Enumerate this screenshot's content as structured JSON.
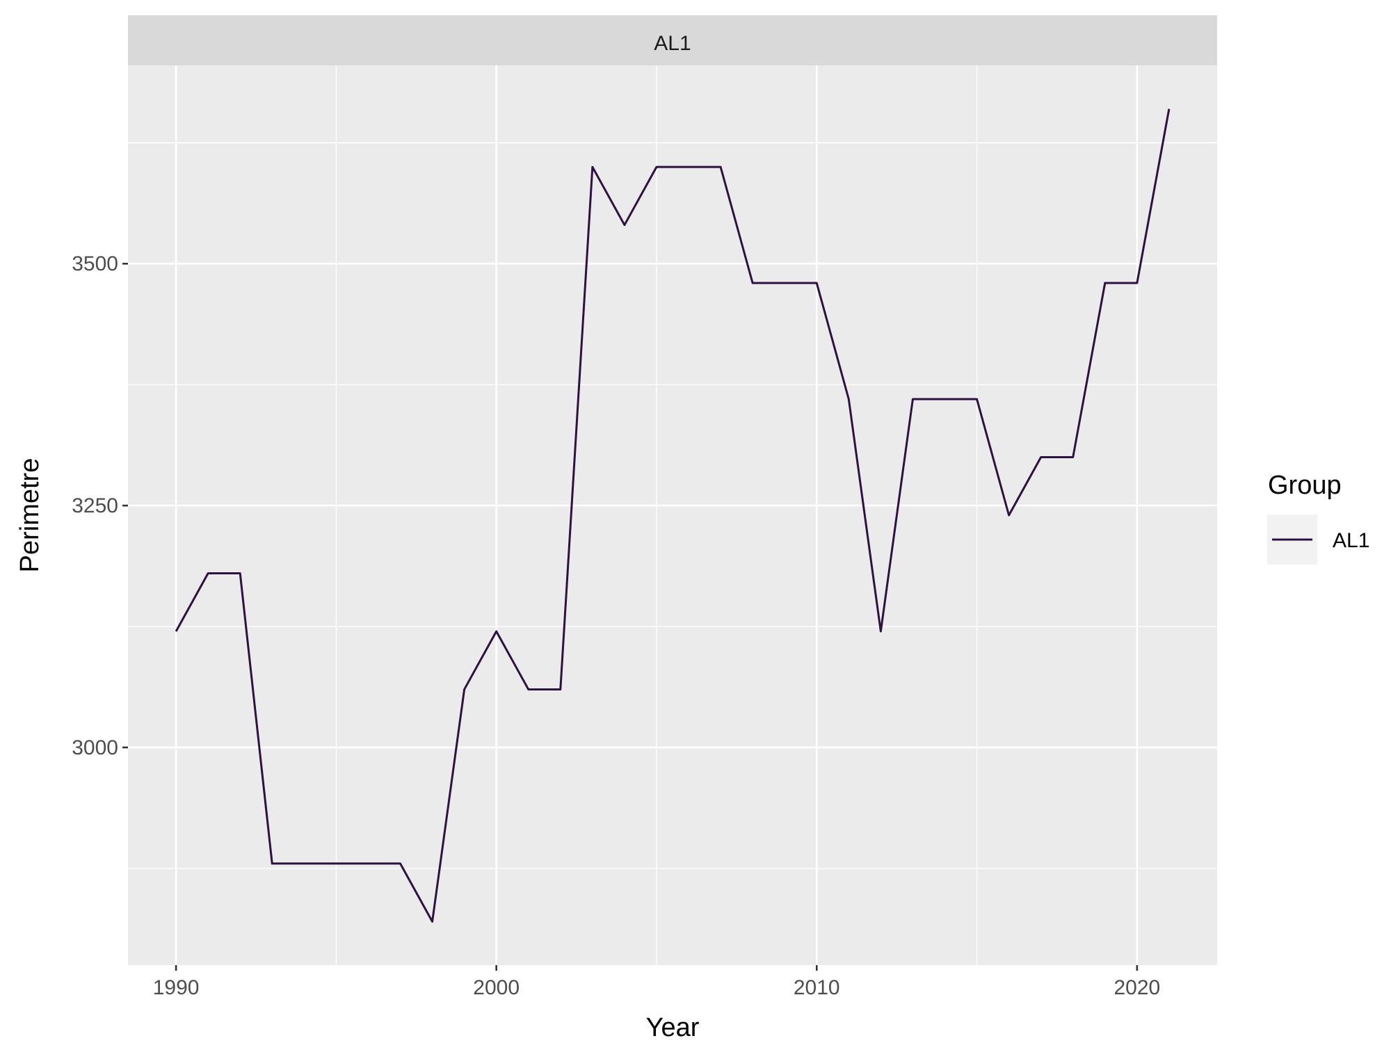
{
  "chart_data": {
    "type": "line",
    "facet_label": "AL1",
    "xlabel": "Year",
    "ylabel": "Perimetre",
    "x_ticks": [
      1990,
      2000,
      2010,
      2020
    ],
    "y_ticks": [
      3000,
      3250,
      3500
    ],
    "xlim": [
      1988.5,
      2022.5
    ],
    "ylim": [
      2775,
      3705
    ],
    "grid": true,
    "legend": {
      "title": "Group",
      "position": "right",
      "entries": [
        "AL1"
      ]
    },
    "colors": {
      "line": "#2D1140",
      "panel_background": "#EBEBEB",
      "grid": "#FFFFFF",
      "strip_background": "#D9D9D9",
      "legend_key_background": "#F2F2F2"
    },
    "series": [
      {
        "name": "AL1",
        "x": [
          1990,
          1991,
          1992,
          1993,
          1994,
          1995,
          1996,
          1997,
          1998,
          1999,
          2000,
          2001,
          2002,
          2003,
          2004,
          2005,
          2006,
          2007,
          2008,
          2009,
          2010,
          2011,
          2012,
          2013,
          2014,
          2015,
          2016,
          2017,
          2018,
          2019,
          2020,
          2021
        ],
        "values": [
          3120,
          3180,
          3180,
          2880,
          2880,
          2880,
          2880,
          2880,
          2820,
          3060,
          3120,
          3060,
          3060,
          3600,
          3540,
          3600,
          3600,
          3600,
          3480,
          3480,
          3480,
          3360,
          3120,
          3360,
          3360,
          3360,
          3240,
          3300,
          3300,
          3480,
          3480,
          3660
        ]
      }
    ]
  }
}
